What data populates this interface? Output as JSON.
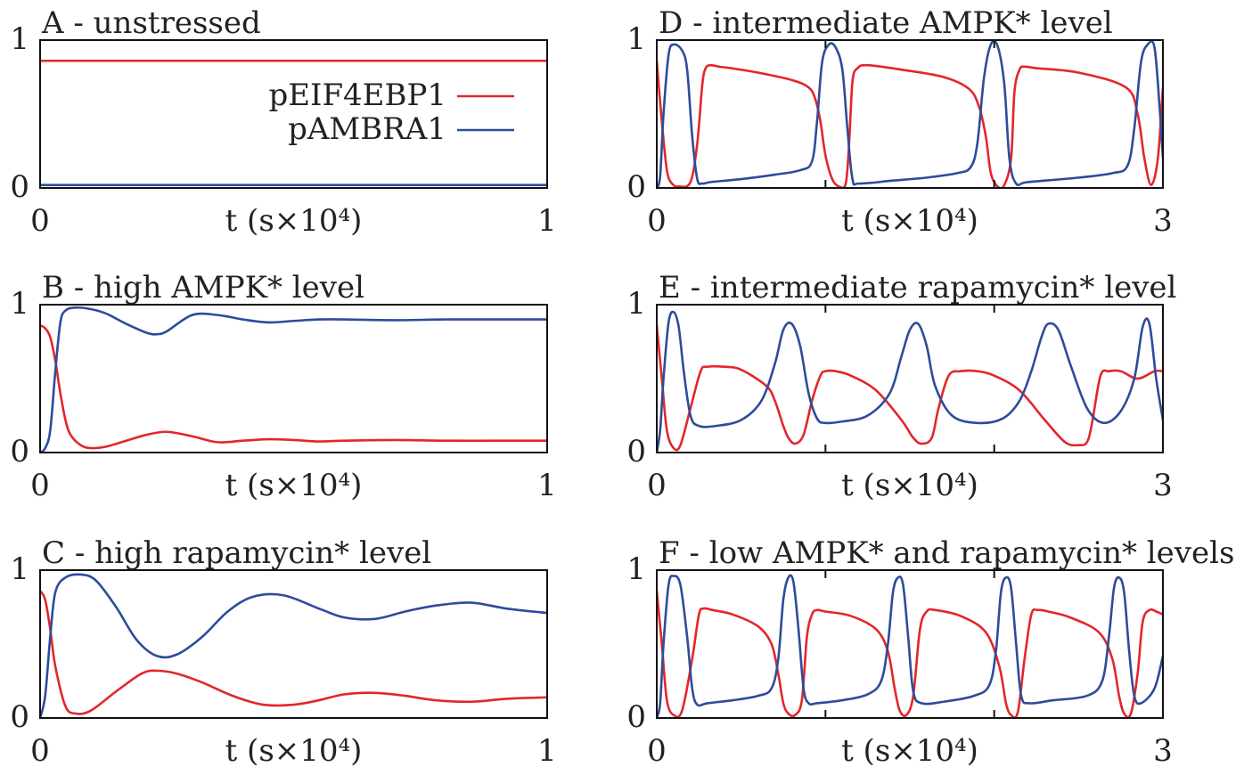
{
  "colors": {
    "pEIF4EBP1": "#e3262a",
    "pAMBRA1": "#2e4b9c"
  },
  "legend": [
    {
      "name": "pEIF4EBP1",
      "color": "#e3262a"
    },
    {
      "name": "pAMBRA1",
      "color": "#2e4b9c"
    }
  ],
  "chart_data": [
    {
      "id": "A",
      "type": "line",
      "title": "A - unstressed",
      "xlabel": "t (s×10⁴)",
      "xlim": [
        0,
        1
      ],
      "ylim": [
        0,
        1
      ],
      "xticklabels": [
        "0",
        "1"
      ],
      "yticklabels": [
        "0",
        "1"
      ],
      "minor_xticks": [],
      "legend": "top-right",
      "series": [
        {
          "name": "pEIF4EBP1",
          "x": [
            0,
            1
          ],
          "y": [
            0.86,
            0.86
          ]
        },
        {
          "name": "pAMBRA1",
          "x": [
            0,
            1
          ],
          "y": [
            0.02,
            0.02
          ]
        }
      ]
    },
    {
      "id": "B",
      "type": "line",
      "title": "B - high AMPK* level",
      "xlabel": "t (s×10⁴)",
      "xlim": [
        0,
        1
      ],
      "ylim": [
        0,
        1
      ],
      "xticklabels": [
        "0",
        "1"
      ],
      "yticklabels": [
        "0",
        "1"
      ],
      "minor_xticks": [],
      "series": [
        {
          "name": "pEIF4EBP1",
          "x": [
            0,
            0.01,
            0.02,
            0.03,
            0.04,
            0.05,
            0.06,
            0.08,
            0.1,
            0.13,
            0.17,
            0.21,
            0.25,
            0.3,
            0.35,
            0.4,
            0.45,
            0.5,
            0.55,
            0.6,
            0.7,
            0.8,
            0.9,
            1.0
          ],
          "y": [
            0.86,
            0.84,
            0.78,
            0.62,
            0.4,
            0.22,
            0.12,
            0.05,
            0.03,
            0.04,
            0.08,
            0.12,
            0.14,
            0.11,
            0.07,
            0.08,
            0.09,
            0.085,
            0.075,
            0.08,
            0.085,
            0.08,
            0.08,
            0.08
          ]
        },
        {
          "name": "pAMBRA1",
          "x": [
            0,
            0.01,
            0.02,
            0.03,
            0.04,
            0.05,
            0.07,
            0.1,
            0.13,
            0.17,
            0.21,
            0.23,
            0.25,
            0.3,
            0.35,
            0.4,
            0.45,
            0.5,
            0.55,
            0.6,
            0.7,
            0.8,
            0.9,
            1.0
          ],
          "y": [
            0.0,
            0.03,
            0.15,
            0.55,
            0.88,
            0.96,
            0.98,
            0.97,
            0.94,
            0.87,
            0.81,
            0.8,
            0.82,
            0.93,
            0.93,
            0.9,
            0.88,
            0.89,
            0.9,
            0.9,
            0.895,
            0.9,
            0.9,
            0.9
          ]
        }
      ]
    },
    {
      "id": "C",
      "type": "line",
      "title": "C - high rapamycin* level",
      "xlabel": "t (s×10⁴)",
      "xlim": [
        0,
        1
      ],
      "ylim": [
        0,
        1
      ],
      "xticklabels": [
        "0",
        "1"
      ],
      "yticklabels": [
        "0",
        "1"
      ],
      "minor_xticks": [],
      "series": [
        {
          "name": "pEIF4EBP1",
          "x": [
            0,
            0.01,
            0.02,
            0.03,
            0.05,
            0.07,
            0.1,
            0.15,
            0.2,
            0.23,
            0.27,
            0.32,
            0.38,
            0.44,
            0.5,
            0.55,
            0.6,
            0.66,
            0.72,
            0.78,
            0.85,
            0.92,
            1.0
          ],
          "y": [
            0.86,
            0.8,
            0.6,
            0.35,
            0.08,
            0.03,
            0.05,
            0.18,
            0.3,
            0.32,
            0.3,
            0.24,
            0.15,
            0.09,
            0.09,
            0.12,
            0.16,
            0.17,
            0.15,
            0.12,
            0.11,
            0.13,
            0.14
          ]
        },
        {
          "name": "pAMBRA1",
          "x": [
            0,
            0.01,
            0.02,
            0.03,
            0.05,
            0.08,
            0.11,
            0.15,
            0.19,
            0.23,
            0.27,
            0.32,
            0.37,
            0.42,
            0.48,
            0.55,
            0.6,
            0.66,
            0.72,
            0.78,
            0.85,
            0.92,
            1.0
          ],
          "y": [
            0.0,
            0.15,
            0.55,
            0.85,
            0.95,
            0.97,
            0.93,
            0.75,
            0.53,
            0.42,
            0.43,
            0.55,
            0.72,
            0.82,
            0.83,
            0.74,
            0.68,
            0.67,
            0.72,
            0.76,
            0.78,
            0.74,
            0.71
          ]
        }
      ]
    },
    {
      "id": "D",
      "type": "line",
      "title": "D - intermediate AMPK* level",
      "xlabel": "t (s×10⁴)",
      "xlim": [
        0,
        3
      ],
      "ylim": [
        0,
        1
      ],
      "xticklabels": [
        "0",
        "3"
      ],
      "yticklabels": [
        "0",
        "1"
      ],
      "minor_xticks": [
        1,
        2
      ],
      "series": [
        {
          "name": "pEIF4EBP1",
          "x": [
            0,
            0.03,
            0.06,
            0.09,
            0.13,
            0.2,
            0.24,
            0.27,
            0.29,
            0.32,
            0.37,
            0.44,
            0.6,
            0.8,
            0.9,
            0.94,
            0.97,
            1.0,
            1.04,
            1.08,
            1.12,
            1.14,
            1.16,
            1.19,
            1.25,
            1.45,
            1.7,
            1.85,
            1.91,
            1.95,
            1.98,
            2.02,
            2.06,
            2.1,
            2.12,
            2.15,
            2.18,
            2.25,
            2.5,
            2.78,
            2.85,
            2.89,
            2.93,
            2.97,
            3.0
          ],
          "y": [
            0.86,
            0.45,
            0.12,
            0.03,
            0.01,
            0.04,
            0.3,
            0.7,
            0.81,
            0.83,
            0.82,
            0.81,
            0.78,
            0.73,
            0.68,
            0.6,
            0.45,
            0.22,
            0.06,
            0.01,
            0.03,
            0.3,
            0.72,
            0.81,
            0.83,
            0.8,
            0.75,
            0.67,
            0.55,
            0.35,
            0.1,
            0.01,
            0.02,
            0.2,
            0.65,
            0.8,
            0.82,
            0.81,
            0.78,
            0.68,
            0.5,
            0.2,
            0.02,
            0.2,
            0.68
          ]
        },
        {
          "name": "pAMBRA1",
          "x": [
            0,
            0.02,
            0.04,
            0.07,
            0.1,
            0.15,
            0.18,
            0.21,
            0.24,
            0.27,
            0.32,
            0.5,
            0.7,
            0.85,
            0.92,
            0.95,
            0.98,
            1.02,
            1.06,
            1.1,
            1.13,
            1.16,
            1.2,
            1.4,
            1.6,
            1.78,
            1.86,
            1.9,
            1.94,
            1.98,
            2.02,
            2.06,
            2.09,
            2.13,
            2.2,
            2.5,
            2.7,
            2.79,
            2.83,
            2.87,
            2.91,
            2.95,
            2.98,
            3.0
          ],
          "y": [
            0.0,
            0.08,
            0.5,
            0.9,
            0.97,
            0.93,
            0.8,
            0.35,
            0.06,
            0.03,
            0.04,
            0.06,
            0.09,
            0.12,
            0.18,
            0.45,
            0.85,
            0.97,
            0.95,
            0.8,
            0.4,
            0.06,
            0.03,
            0.05,
            0.07,
            0.1,
            0.14,
            0.3,
            0.75,
            0.97,
            0.96,
            0.7,
            0.2,
            0.03,
            0.04,
            0.07,
            0.1,
            0.15,
            0.4,
            0.85,
            0.97,
            0.95,
            0.55,
            0.2
          ]
        }
      ]
    },
    {
      "id": "E",
      "type": "line",
      "title": "E - intermediate rapamycin* level",
      "xlabel": "t (s×10⁴)",
      "xlim": [
        0,
        3
      ],
      "ylim": [
        0,
        1
      ],
      "xticklabels": [
        "0",
        "3"
      ],
      "yticklabels": [
        "0",
        "1"
      ],
      "minor_xticks": [
        1,
        2
      ],
      "series": [
        {
          "name": "pEIF4EBP1",
          "x": [
            0,
            0.03,
            0.06,
            0.1,
            0.14,
            0.2,
            0.26,
            0.3,
            0.4,
            0.5,
            0.65,
            0.7,
            0.75,
            0.78,
            0.82,
            0.87,
            0.92,
            0.97,
            1.0,
            1.06,
            1.15,
            1.3,
            1.45,
            1.52,
            1.57,
            1.63,
            1.67,
            1.73,
            1.8,
            1.9,
            2.0,
            2.15,
            2.3,
            2.42,
            2.5,
            2.55,
            2.58,
            2.63,
            2.68,
            2.75,
            2.85,
            2.95,
            3.0
          ],
          "y": [
            0.86,
            0.5,
            0.15,
            0.03,
            0.05,
            0.3,
            0.55,
            0.58,
            0.58,
            0.56,
            0.45,
            0.35,
            0.18,
            0.1,
            0.06,
            0.12,
            0.35,
            0.52,
            0.55,
            0.55,
            0.52,
            0.42,
            0.22,
            0.1,
            0.06,
            0.1,
            0.3,
            0.52,
            0.55,
            0.55,
            0.52,
            0.42,
            0.22,
            0.07,
            0.05,
            0.07,
            0.2,
            0.52,
            0.55,
            0.55,
            0.5,
            0.55,
            0.55
          ]
        },
        {
          "name": "pAMBRA1",
          "x": [
            0,
            0.02,
            0.04,
            0.07,
            0.1,
            0.13,
            0.16,
            0.2,
            0.25,
            0.35,
            0.5,
            0.62,
            0.7,
            0.75,
            0.8,
            0.85,
            0.9,
            0.95,
            1.0,
            1.1,
            1.25,
            1.38,
            1.45,
            1.5,
            1.55,
            1.6,
            1.65,
            1.75,
            1.9,
            2.05,
            2.15,
            2.22,
            2.28,
            2.32,
            2.38,
            2.45,
            2.55,
            2.65,
            2.75,
            2.83,
            2.88,
            2.92,
            2.96,
            3.0
          ],
          "y": [
            0.0,
            0.15,
            0.5,
            0.88,
            0.95,
            0.85,
            0.55,
            0.25,
            0.18,
            0.18,
            0.22,
            0.35,
            0.6,
            0.83,
            0.87,
            0.72,
            0.4,
            0.23,
            0.2,
            0.21,
            0.25,
            0.4,
            0.65,
            0.83,
            0.87,
            0.72,
            0.45,
            0.25,
            0.2,
            0.23,
            0.35,
            0.55,
            0.78,
            0.87,
            0.83,
            0.6,
            0.3,
            0.2,
            0.28,
            0.5,
            0.85,
            0.87,
            0.5,
            0.22
          ]
        }
      ]
    },
    {
      "id": "F",
      "type": "line",
      "title": "F - low AMPK* and rapamycin* levels",
      "xlabel": "t (s×10⁴)",
      "xlim": [
        0,
        3
      ],
      "ylim": [
        0,
        1
      ],
      "xticklabels": [
        "0",
        "3"
      ],
      "yticklabels": [
        "0",
        "1"
      ],
      "minor_xticks": [
        1,
        2
      ],
      "series": [
        {
          "name": "pEIF4EBP1",
          "x": [
            0,
            0.03,
            0.06,
            0.1,
            0.15,
            0.21,
            0.25,
            0.28,
            0.33,
            0.45,
            0.6,
            0.68,
            0.72,
            0.75,
            0.78,
            0.82,
            0.86,
            0.89,
            0.92,
            0.95,
            1.0,
            1.15,
            1.3,
            1.37,
            1.41,
            1.44,
            1.48,
            1.52,
            1.56,
            1.6,
            1.65,
            1.8,
            1.95,
            2.03,
            2.07,
            2.1,
            2.14,
            2.18,
            2.22,
            2.26,
            2.32,
            2.45,
            2.62,
            2.7,
            2.74,
            2.77,
            2.81,
            2.85,
            2.88,
            2.92,
            2.96,
            3.0
          ],
          "y": [
            0.86,
            0.5,
            0.12,
            0.02,
            0.05,
            0.4,
            0.7,
            0.74,
            0.73,
            0.7,
            0.62,
            0.5,
            0.3,
            0.1,
            0.03,
            0.02,
            0.12,
            0.55,
            0.7,
            0.73,
            0.72,
            0.69,
            0.6,
            0.45,
            0.2,
            0.05,
            0.02,
            0.15,
            0.6,
            0.72,
            0.73,
            0.69,
            0.58,
            0.35,
            0.1,
            0.02,
            0.04,
            0.4,
            0.7,
            0.73,
            0.72,
            0.68,
            0.58,
            0.4,
            0.15,
            0.03,
            0.03,
            0.3,
            0.65,
            0.73,
            0.72,
            0.7
          ]
        },
        {
          "name": "pAMBRA1",
          "x": [
            0,
            0.02,
            0.04,
            0.07,
            0.1,
            0.14,
            0.18,
            0.21,
            0.24,
            0.3,
            0.45,
            0.6,
            0.68,
            0.72,
            0.75,
            0.78,
            0.81,
            0.84,
            0.87,
            0.9,
            0.95,
            1.1,
            1.25,
            1.33,
            1.37,
            1.4,
            1.43,
            1.46,
            1.49,
            1.52,
            1.57,
            1.7,
            1.88,
            1.97,
            2.01,
            2.04,
            2.07,
            2.1,
            2.13,
            2.16,
            2.21,
            2.35,
            2.55,
            2.64,
            2.68,
            2.71,
            2.74,
            2.77,
            2.8,
            2.83,
            2.87,
            2.95,
            3.0
          ],
          "y": [
            0.0,
            0.1,
            0.5,
            0.9,
            0.96,
            0.9,
            0.55,
            0.2,
            0.09,
            0.1,
            0.12,
            0.15,
            0.2,
            0.4,
            0.8,
            0.95,
            0.92,
            0.6,
            0.2,
            0.1,
            0.1,
            0.12,
            0.16,
            0.25,
            0.5,
            0.85,
            0.95,
            0.9,
            0.55,
            0.18,
            0.1,
            0.11,
            0.15,
            0.22,
            0.45,
            0.85,
            0.95,
            0.88,
            0.5,
            0.15,
            0.1,
            0.12,
            0.15,
            0.25,
            0.55,
            0.88,
            0.95,
            0.85,
            0.45,
            0.15,
            0.1,
            0.2,
            0.42
          ]
        }
      ]
    }
  ]
}
